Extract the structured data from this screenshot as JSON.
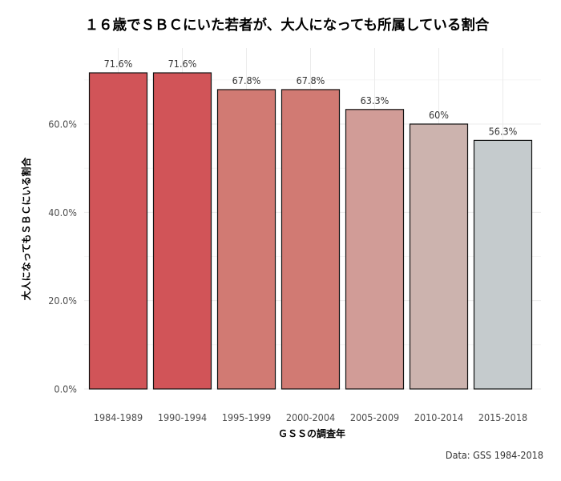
{
  "chart_data": {
    "type": "bar",
    "title": "１６歳でＳＢＣにいた若者が、大人になっても所属している割合",
    "xlabel": "ＧＳＳの調査年",
    "ylabel": "大人になってもＳＢＣにいる割合",
    "caption": "Data: GSS 1984-2018",
    "categories": [
      "1984-1989",
      "1990-1994",
      "1995-1999",
      "2000-2004",
      "2005-2009",
      "2010-2014",
      "2015-2018"
    ],
    "values": [
      71.6,
      71.6,
      67.8,
      67.8,
      63.3,
      60.0,
      56.3
    ],
    "data_labels": [
      "71.6%",
      "71.6%",
      "67.8%",
      "67.8%",
      "63.3%",
      "60%",
      "56.3%"
    ],
    "colors": [
      "#d15458",
      "#d15458",
      "#d17a73",
      "#d17a73",
      "#d19c97",
      "#ccb3ae",
      "#c5cbcd"
    ],
    "yticks": [
      0,
      20,
      40,
      60
    ],
    "ytick_labels": [
      "0.0%",
      "20.0%",
      "40.0%",
      "60.0%"
    ],
    "ylim": [
      0,
      72
    ],
    "grid": true,
    "legend": "none"
  }
}
